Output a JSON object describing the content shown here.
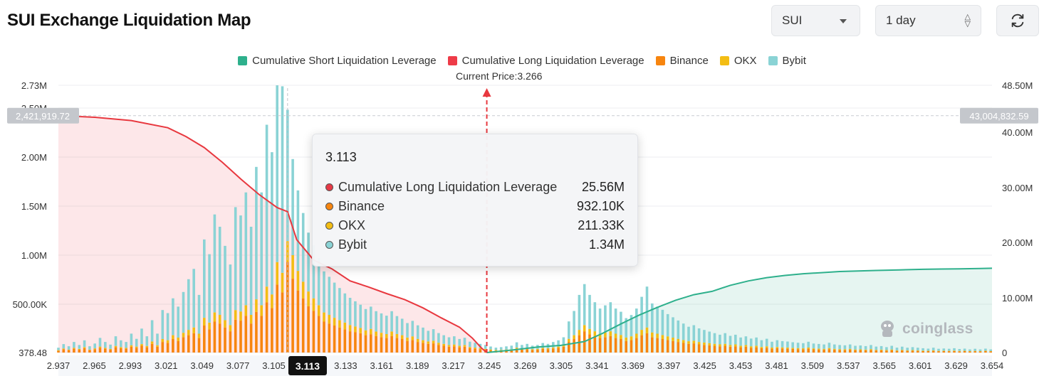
{
  "page": {
    "title": "SUI Exchange Liquidation Map"
  },
  "controls": {
    "coin": "SUI",
    "range": "1 day"
  },
  "watermark": "coinglass",
  "current_price_label": "Current Price:3.266",
  "tooltip": {
    "price": "3.113",
    "rows": [
      {
        "label": "Cumulative Long Liquidation Leverage",
        "value": "25.56M",
        "color": "#e63946"
      },
      {
        "label": "Binance",
        "value": "932.10K",
        "color": "#f7850f"
      },
      {
        "label": "OKX",
        "value": "211.33K",
        "color": "#f3bd14"
      },
      {
        "label": "Bybit",
        "value": "1.34M",
        "color": "#8ad3d5"
      }
    ]
  },
  "chart_data": {
    "type": "bar",
    "title": "",
    "legend": {
      "position": "top-center",
      "entries": [
        {
          "name": "Cumulative Short Liquidation Leverage",
          "color": "#2eb08c"
        },
        {
          "name": "Cumulative Long Liquidation Leverage",
          "color": "#ee3b48"
        },
        {
          "name": "Binance",
          "color": "#f7850f"
        },
        {
          "name": "OKX",
          "color": "#f3bd14"
        },
        {
          "name": "Bybit",
          "color": "#8ad3d5"
        }
      ]
    },
    "x_ticks": [
      "2.937",
      "2.965",
      "2.993",
      "3.021",
      "3.049",
      "3.077",
      "3.105",
      "3.113",
      "3.133",
      "3.161",
      "3.189",
      "3.217",
      "3.245",
      "3.269",
      "3.305",
      "3.341",
      "3.369",
      "3.397",
      "3.425",
      "3.453",
      "3.481",
      "3.509",
      "3.537",
      "3.565",
      "3.601",
      "3.629",
      "3.654"
    ],
    "x_range": [
      2.937,
      3.654
    ],
    "highlighted_x": "3.113",
    "current_price": 3.266,
    "y_left": {
      "range": [
        378.48,
        2730000
      ],
      "ticks": [
        {
          "label": "2.73M",
          "value": 2730000
        },
        {
          "label": "2.50M",
          "value": 2500000
        },
        {
          "label": "2.00M",
          "value": 2000000
        },
        {
          "label": "1.50M",
          "value": 1500000
        },
        {
          "label": "1.00M",
          "value": 1000000
        },
        {
          "label": "500.00K",
          "value": 500000
        },
        {
          "label": "378.48",
          "value": 378.48
        }
      ],
      "marker": {
        "label": "2,421,919.72",
        "value": 2421919.72
      }
    },
    "y_right": {
      "range": [
        0,
        48500000
      ],
      "ticks": [
        {
          "label": "48.50M",
          "value": 48500000
        },
        {
          "label": "40.00M",
          "value": 40000000
        },
        {
          "label": "30.00M",
          "value": 30000000
        },
        {
          "label": "20.00M",
          "value": 20000000
        },
        {
          "label": "10.00M",
          "value": 10000000
        },
        {
          "label": "0",
          "value": 0
        }
      ],
      "marker": {
        "label": "43,004,832.59",
        "value": 43004832.59
      }
    },
    "cumulative_long": {
      "name": "Cumulative Long Liquidation Leverage",
      "x": [
        2.937,
        2.965,
        2.993,
        3.021,
        3.035,
        3.049,
        3.063,
        3.077,
        3.091,
        3.105,
        3.113,
        3.12,
        3.133,
        3.147,
        3.161,
        3.175,
        3.189,
        3.203,
        3.217,
        3.231,
        3.245,
        3.255,
        3.262,
        3.266
      ],
      "values": [
        43000000,
        42700000,
        42100000,
        40800000,
        39200000,
        37200000,
        34500000,
        31500000,
        28700000,
        26300000,
        25560000,
        20500000,
        16800000,
        15200000,
        13000000,
        11900000,
        10700000,
        9600000,
        8100000,
        6300000,
        4600000,
        2600000,
        800000,
        0
      ]
    },
    "cumulative_short": {
      "name": "Cumulative Short Liquidation Leverage",
      "x": [
        3.266,
        3.287,
        3.305,
        3.323,
        3.341,
        3.355,
        3.369,
        3.383,
        3.397,
        3.411,
        3.425,
        3.439,
        3.453,
        3.467,
        3.481,
        3.495,
        3.509,
        3.523,
        3.537,
        3.551,
        3.565,
        3.583,
        3.601,
        3.615,
        3.629,
        3.645,
        3.654
      ],
      "values": [
        0,
        500000,
        1000000,
        1300000,
        2000000,
        3500000,
        5200000,
        6800000,
        8200000,
        9500000,
        10500000,
        11100000,
        12200000,
        13000000,
        13600000,
        14000000,
        14300000,
        14500000,
        14700000,
        14800000,
        14900000,
        15000000,
        15100000,
        15150000,
        15200000,
        15250000,
        15300000
      ]
    },
    "bars": {
      "x": [
        2.937,
        2.941,
        2.945,
        2.949,
        2.953,
        2.957,
        2.961,
        2.965,
        2.969,
        2.973,
        2.977,
        2.981,
        2.985,
        2.989,
        2.993,
        2.997,
        3.001,
        3.005,
        3.009,
        3.013,
        3.017,
        3.021,
        3.025,
        3.029,
        3.033,
        3.037,
        3.041,
        3.045,
        3.049,
        3.053,
        3.057,
        3.061,
        3.065,
        3.069,
        3.073,
        3.077,
        3.081,
        3.085,
        3.089,
        3.093,
        3.097,
        3.101,
        3.105,
        3.109,
        3.113,
        3.117,
        3.121,
        3.125,
        3.129,
        3.133,
        3.137,
        3.141,
        3.145,
        3.149,
        3.153,
        3.157,
        3.161,
        3.165,
        3.169,
        3.173,
        3.177,
        3.181,
        3.185,
        3.189,
        3.193,
        3.197,
        3.201,
        3.205,
        3.209,
        3.213,
        3.217,
        3.221,
        3.225,
        3.229,
        3.233,
        3.237,
        3.241,
        3.245,
        3.249,
        3.253,
        3.257,
        3.261,
        3.265,
        3.269,
        3.273,
        3.277,
        3.281,
        3.285,
        3.289,
        3.293,
        3.297,
        3.301,
        3.305,
        3.309,
        3.313,
        3.317,
        3.321,
        3.325,
        3.329,
        3.333,
        3.337,
        3.341,
        3.345,
        3.349,
        3.353,
        3.357,
        3.361,
        3.365,
        3.369,
        3.373,
        3.377,
        3.381,
        3.385,
        3.389,
        3.393,
        3.397,
        3.401,
        3.405,
        3.409,
        3.413,
        3.417,
        3.421,
        3.425,
        3.429,
        3.433,
        3.437,
        3.441,
        3.445,
        3.449,
        3.453,
        3.457,
        3.461,
        3.465,
        3.469,
        3.473,
        3.477,
        3.481,
        3.485,
        3.489,
        3.493,
        3.497,
        3.501,
        3.505,
        3.509,
        3.513,
        3.517,
        3.521,
        3.525,
        3.529,
        3.533,
        3.537,
        3.541,
        3.545,
        3.549,
        3.553,
        3.557,
        3.561,
        3.565,
        3.569,
        3.573,
        3.577,
        3.581,
        3.585,
        3.589,
        3.593,
        3.597,
        3.601,
        3.605,
        3.609,
        3.613,
        3.617,
        3.621,
        3.625,
        3.629,
        3.633,
        3.637,
        3.641,
        3.645,
        3.649,
        3.653
      ],
      "binance": [
        20,
        35,
        25,
        40,
        30,
        45,
        25,
        35,
        50,
        40,
        30,
        55,
        45,
        40,
        60,
        50,
        70,
        55,
        90,
        60,
        110,
        100,
        140,
        120,
        160,
        180,
        200,
        150,
        280,
        240,
        320,
        300,
        260,
        220,
        340,
        330,
        380,
        300,
        420,
        380,
        520,
        460,
        700,
        620,
        932,
        760,
        640,
        560,
        480,
        430,
        380,
        320,
        300,
        280,
        260,
        240,
        220,
        210,
        200,
        180,
        190,
        170,
        160,
        150,
        170,
        150,
        140,
        120,
        130,
        110,
        100,
        90,
        95,
        80,
        70,
        60,
        65,
        55,
        60,
        45,
        40,
        35,
        30,
        25,
        20,
        22,
        25,
        28,
        40,
        30,
        35,
        28,
        30,
        38,
        35,
        42,
        48,
        60,
        110,
        140,
        180,
        220,
        190,
        170,
        150,
        160,
        170,
        150,
        140,
        120,
        130,
        150,
        180,
        200,
        160,
        150,
        140,
        130,
        120,
        110,
        100,
        90,
        95,
        85,
        80,
        75,
        70,
        65,
        70,
        60,
        65,
        55,
        60,
        50,
        55,
        45,
        50,
        40,
        45,
        42,
        40,
        38,
        36,
        35,
        40,
        34,
        32,
        30,
        36,
        30,
        28,
        27,
        30,
        25,
        26,
        24,
        28,
        22,
        24,
        20,
        25,
        18,
        22,
        18,
        20,
        18,
        16,
        15,
        18,
        14,
        15,
        14,
        16,
        13,
        15,
        12,
        14,
        12,
        15,
        12
      ],
      "okx": [
        5,
        8,
        6,
        10,
        8,
        12,
        6,
        9,
        12,
        10,
        8,
        14,
        12,
        10,
        16,
        12,
        18,
        14,
        25,
        16,
        30,
        28,
        40,
        35,
        45,
        55,
        60,
        45,
        80,
        70,
        95,
        90,
        75,
        65,
        100,
        95,
        110,
        90,
        130,
        110,
        160,
        140,
        230,
        200,
        211,
        240,
        200,
        170,
        150,
        130,
        110,
        95,
        90,
        80,
        75,
        70,
        65,
        60,
        55,
        50,
        55,
        48,
        45,
        42,
        48,
        42,
        40,
        35,
        38,
        32,
        28,
        25,
        27,
        22,
        20,
        18,
        19,
        16,
        18,
        13,
        12,
        10,
        9,
        8,
        6,
        6,
        7,
        8,
        11,
        9,
        10,
        8,
        9,
        11,
        10,
        12,
        14,
        18,
        32,
        40,
        55,
        65,
        55,
        50,
        45,
        48,
        50,
        45,
        42,
        36,
        38,
        45,
        55,
        60,
        48,
        45,
        42,
        38,
        35,
        32,
        30,
        27,
        28,
        25,
        24,
        22,
        21,
        20,
        21,
        18,
        20,
        16,
        18,
        15,
        16,
        13,
        15,
        12,
        13,
        12,
        12,
        11,
        11,
        10,
        12,
        10,
        9,
        9,
        11,
        9,
        8,
        8,
        9,
        7,
        8,
        7,
        8,
        6,
        7,
        6,
        7,
        5,
        6,
        5,
        6,
        5,
        5,
        4,
        5,
        4,
        4,
        4,
        5,
        4,
        4,
        3,
        4,
        3,
        4,
        3
      ],
      "bybit": [
        25,
        45,
        35,
        60,
        40,
        70,
        35,
        50,
        90,
        60,
        45,
        100,
        70,
        60,
        120,
        80,
        160,
        100,
        220,
        120,
        300,
        280,
        380,
        320,
        420,
        520,
        600,
        400,
        800,
        700,
        1000,
        900,
        760,
        620,
        1050,
        980,
        1150,
        900,
        1350,
        1150,
        1650,
        1450,
        2350,
        1900,
        1340,
        980,
        820,
        700,
        600,
        540,
        480,
        420,
        390,
        360,
        330,
        300,
        280,
        260,
        240,
        220,
        230,
        210,
        200,
        190,
        210,
        185,
        170,
        150,
        160,
        140,
        130,
        110,
        120,
        100,
        90,
        80,
        85,
        70,
        75,
        55,
        50,
        45,
        40,
        30,
        25,
        28,
        32,
        36,
        55,
        40,
        45,
        36,
        40,
        50,
        45,
        55,
        65,
        80,
        180,
        250,
        360,
        420,
        350,
        300,
        260,
        280,
        300,
        260,
        240,
        200,
        220,
        260,
        340,
        420,
        300,
        280,
        260,
        230,
        210,
        190,
        170,
        150,
        160,
        140,
        130,
        120,
        110,
        100,
        110,
        95,
        100,
        85,
        90,
        80,
        85,
        70,
        78,
        60,
        70,
        65,
        62,
        58,
        55,
        52,
        60,
        50,
        48,
        45,
        55,
        45,
        42,
        40,
        45,
        38,
        40,
        36,
        42,
        34,
        36,
        30,
        38,
        28,
        33,
        27,
        30,
        27,
        24,
        22,
        27,
        21,
        23,
        21,
        24,
        20,
        22,
        18,
        21,
        18,
        22,
        18
      ]
    }
  }
}
